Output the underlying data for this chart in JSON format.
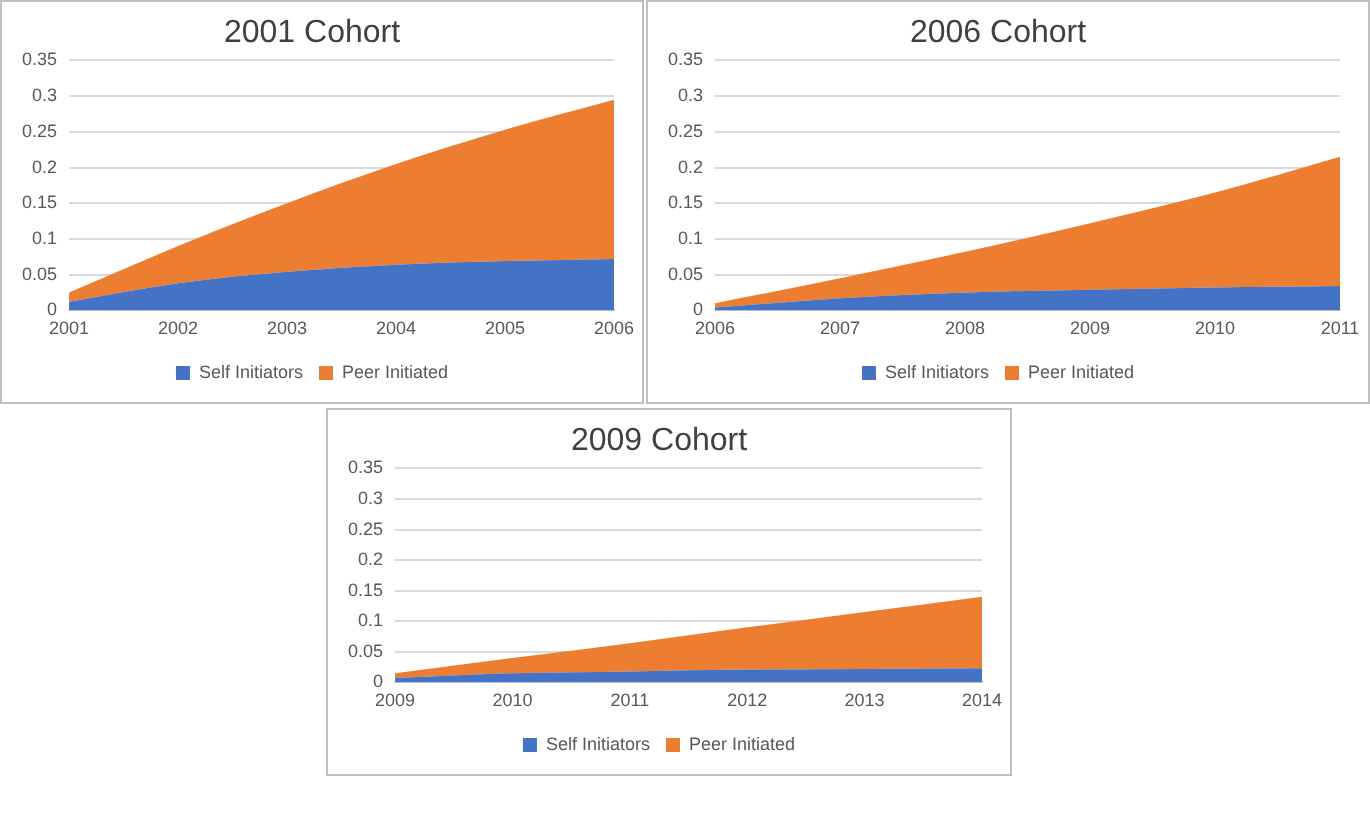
{
  "chart_data": [
    {
      "type": "area",
      "title": "2001 Cohort",
      "stacked": true,
      "categories": [
        "2001",
        "2002",
        "2003",
        "2004",
        "2005",
        "2006"
      ],
      "series": [
        {
          "name": "Self Initiators",
          "color": "#4472c4",
          "values": [
            0.012,
            0.038,
            0.054,
            0.064,
            0.069,
            0.072
          ]
        },
        {
          "name": "Peer Initiated",
          "color": "#ed7d31",
          "values": [
            0.013,
            0.052,
            0.096,
            0.141,
            0.184,
            0.223
          ]
        }
      ],
      "ylim": [
        0,
        0.35
      ],
      "yticks": [
        0,
        0.05,
        0.1,
        0.15,
        0.2,
        0.25,
        0.3,
        0.35
      ],
      "grid": "y",
      "legend": "bottom"
    },
    {
      "type": "area",
      "title": "2006 Cohort",
      "stacked": true,
      "categories": [
        "2006",
        "2007",
        "2008",
        "2009",
        "2010",
        "2011"
      ],
      "series": [
        {
          "name": "Self Initiators",
          "color": "#4472c4",
          "values": [
            0.004,
            0.017,
            0.025,
            0.029,
            0.032,
            0.034
          ]
        },
        {
          "name": "Peer Initiated",
          "color": "#ed7d31",
          "values": [
            0.006,
            0.028,
            0.057,
            0.093,
            0.133,
            0.181
          ]
        }
      ],
      "ylim": [
        0,
        0.35
      ],
      "yticks": [
        0,
        0.05,
        0.1,
        0.15,
        0.2,
        0.25,
        0.3,
        0.35
      ],
      "grid": "y",
      "legend": "bottom"
    },
    {
      "type": "area",
      "title": "2009 Cohort",
      "stacked": true,
      "categories": [
        "2009",
        "2010",
        "2011",
        "2012",
        "2013",
        "2014"
      ],
      "series": [
        {
          "name": "Self Initiators",
          "color": "#4472c4",
          "values": [
            0.007,
            0.015,
            0.018,
            0.021,
            0.022,
            0.023
          ]
        },
        {
          "name": "Peer Initiated",
          "color": "#ed7d31",
          "values": [
            0.008,
            0.025,
            0.046,
            0.069,
            0.093,
            0.117
          ]
        }
      ],
      "ylim": [
        0,
        0.35
      ],
      "yticks": [
        0,
        0.05,
        0.1,
        0.15,
        0.2,
        0.25,
        0.3,
        0.35
      ],
      "grid": "y",
      "legend": "bottom"
    }
  ]
}
